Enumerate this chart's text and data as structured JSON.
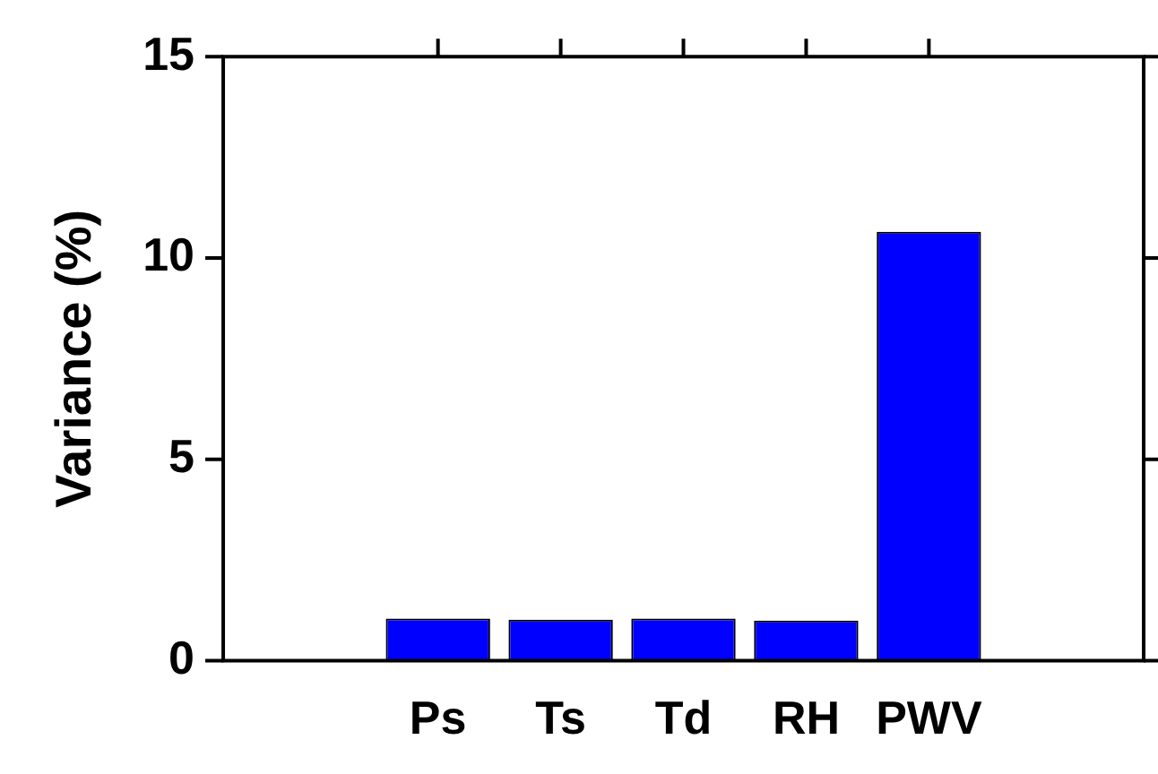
{
  "chart_data": {
    "type": "bar",
    "ylabel": "Variance (%)",
    "categories": [
      "Ps",
      "Ts",
      "Td",
      "RH",
      "PWV"
    ],
    "values": [
      1.05,
      1.02,
      1.05,
      1.0,
      10.65
    ],
    "color": "#0000ff",
    "ylim": [
      0,
      15
    ],
    "yticks": [
      0,
      5,
      10,
      15
    ],
    "grid": false,
    "legend": false
  }
}
